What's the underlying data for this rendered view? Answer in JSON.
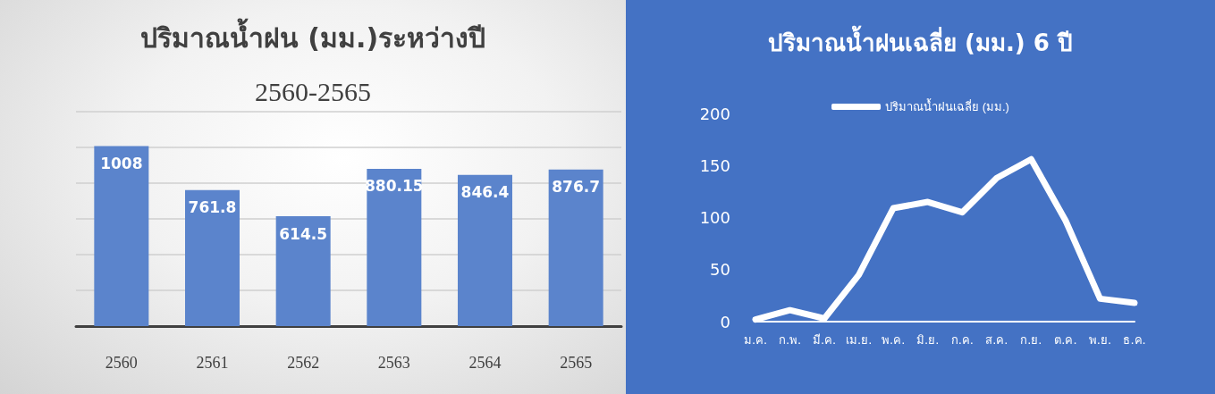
{
  "chart_data": [
    {
      "type": "bar",
      "title": "ปริมาณน้ำฝน (มม.)ระหว่างปี",
      "subtitle": "2560-2565",
      "categories": [
        "2560",
        "2561",
        "2562",
        "2563",
        "2564",
        "2565"
      ],
      "values": [
        1008,
        761.8,
        614.5,
        880.15,
        846.4,
        876.7
      ],
      "color": "#5b84cc",
      "data_labels": true,
      "grid": "y",
      "tick_labels": "x",
      "legend": false
    },
    {
      "type": "line",
      "title": "ปริมาณน้ำฝนเฉลี่ย (มม.) 6 ปี",
      "categories": [
        "ม.ค.",
        "ก.พ.",
        "มี.ค.",
        "เม.ย.",
        "พ.ค.",
        "มิ.ย.",
        "ก.ค.",
        "ส.ค.",
        "ก.ย.",
        "ต.ค.",
        "พ.ย.",
        "ธ.ค."
      ],
      "series": [
        {
          "name": "ปริมาณน้ำฝนเฉลี่ย (มม.)",
          "color": "#ffffff",
          "values": [
            2,
            11,
            3,
            45,
            109,
            115,
            105,
            138,
            156,
            97,
            22,
            18
          ]
        }
      ],
      "ylim": [
        0,
        200
      ],
      "yticks": [
        0,
        50,
        100,
        150,
        200
      ],
      "grid": false,
      "legend": "top",
      "marker": "none",
      "line_style": "solid"
    }
  ]
}
